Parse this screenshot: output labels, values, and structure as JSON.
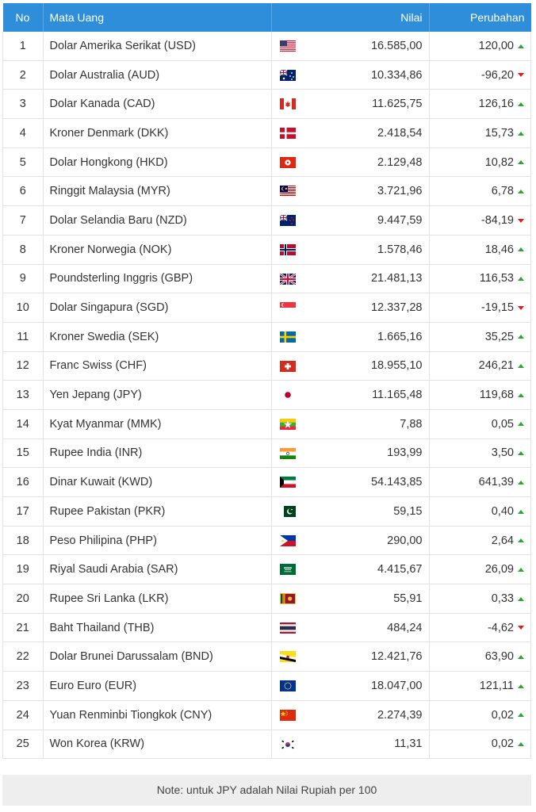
{
  "header": {
    "no": "No",
    "currency": "Mata Uang",
    "value": "Nilai",
    "change": "Perubahan"
  },
  "colors": {
    "header_bg": "#2e8ed9",
    "up": "#2ba82b",
    "down": "#e81b1b"
  },
  "rows": [
    {
      "no": "1",
      "name": "Dolar Amerika Serikat (USD)",
      "flag": "us-flag-icon",
      "value": "16.585,00",
      "change": "120,00",
      "dir": "up"
    },
    {
      "no": "2",
      "name": "Dolar Australia (AUD)",
      "flag": "au-flag-icon",
      "value": "10.334,86",
      "change": "-96,20",
      "dir": "down"
    },
    {
      "no": "3",
      "name": "Dolar Kanada (CAD)",
      "flag": "ca-flag-icon",
      "value": "11.625,75",
      "change": "126,16",
      "dir": "up"
    },
    {
      "no": "4",
      "name": "Kroner Denmark (DKK)",
      "flag": "dk-flag-icon",
      "value": "2.418,54",
      "change": "15,73",
      "dir": "up"
    },
    {
      "no": "5",
      "name": "Dolar Hongkong (HKD)",
      "flag": "hk-flag-icon",
      "value": "2.129,48",
      "change": "10,82",
      "dir": "up"
    },
    {
      "no": "6",
      "name": "Ringgit Malaysia (MYR)",
      "flag": "my-flag-icon",
      "value": "3.721,96",
      "change": "6,78",
      "dir": "up"
    },
    {
      "no": "7",
      "name": "Dolar Selandia Baru (NZD)",
      "flag": "nz-flag-icon",
      "value": "9.447,59",
      "change": "-84,19",
      "dir": "down"
    },
    {
      "no": "8",
      "name": "Kroner Norwegia (NOK)",
      "flag": "no-flag-icon",
      "value": "1.578,46",
      "change": "18,46",
      "dir": "up"
    },
    {
      "no": "9",
      "name": "Poundsterling Inggris (GBP)",
      "flag": "gb-flag-icon",
      "value": "21.481,13",
      "change": "116,53",
      "dir": "up"
    },
    {
      "no": "10",
      "name": "Dolar Singapura (SGD)",
      "flag": "sg-flag-icon",
      "value": "12.337,28",
      "change": "-19,15",
      "dir": "down"
    },
    {
      "no": "11",
      "name": "Kroner Swedia (SEK)",
      "flag": "se-flag-icon",
      "value": "1.665,16",
      "change": "35,25",
      "dir": "up"
    },
    {
      "no": "12",
      "name": "Franc Swiss (CHF)",
      "flag": "ch-flag-icon",
      "value": "18.955,10",
      "change": "246,21",
      "dir": "up"
    },
    {
      "no": "13",
      "name": "Yen Jepang (JPY)",
      "flag": "jp-flag-icon",
      "value": "11.165,48",
      "change": "119,68",
      "dir": "up"
    },
    {
      "no": "14",
      "name": "Kyat Myanmar (MMK)",
      "flag": "mm-flag-icon",
      "value": "7,88",
      "change": "0,05",
      "dir": "up"
    },
    {
      "no": "15",
      "name": "Rupee India (INR)",
      "flag": "in-flag-icon",
      "value": "193,99",
      "change": "3,50",
      "dir": "up"
    },
    {
      "no": "16",
      "name": "Dinar Kuwait (KWD)",
      "flag": "kw-flag-icon",
      "value": "54.143,85",
      "change": "641,39",
      "dir": "up"
    },
    {
      "no": "17",
      "name": "Rupee Pakistan (PKR)",
      "flag": "pk-flag-icon",
      "value": "59,15",
      "change": "0,40",
      "dir": "up"
    },
    {
      "no": "18",
      "name": "Peso Philipina (PHP)",
      "flag": "ph-flag-icon",
      "value": "290,00",
      "change": "2,64",
      "dir": "up"
    },
    {
      "no": "19",
      "name": "Riyal Saudi Arabia (SAR)",
      "flag": "sa-flag-icon",
      "value": "4.415,67",
      "change": "26,09",
      "dir": "up"
    },
    {
      "no": "20",
      "name": "Rupee Sri Lanka (LKR)",
      "flag": "lk-flag-icon",
      "value": "55,91",
      "change": "0,33",
      "dir": "up"
    },
    {
      "no": "21",
      "name": "Baht Thailand (THB)",
      "flag": "th-flag-icon",
      "value": "484,24",
      "change": "-4,62",
      "dir": "down"
    },
    {
      "no": "22",
      "name": "Dolar Brunei Darussalam (BND)",
      "flag": "bn-flag-icon",
      "value": "12.421,76",
      "change": "63,90",
      "dir": "up"
    },
    {
      "no": "23",
      "name": "Euro Euro (EUR)",
      "flag": "eu-flag-icon",
      "value": "18.047,00",
      "change": "121,11",
      "dir": "up"
    },
    {
      "no": "24",
      "name": "Yuan Renminbi Tiongkok (CNY)",
      "flag": "cn-flag-icon",
      "value": "2.274,39",
      "change": "0,02",
      "dir": "up"
    },
    {
      "no": "25",
      "name": "Won Korea (KRW)",
      "flag": "kr-flag-icon",
      "value": "11,31",
      "change": "0,02",
      "dir": "up"
    }
  ],
  "note": "Note: untuk JPY adalah Nilai Rupiah per 100"
}
